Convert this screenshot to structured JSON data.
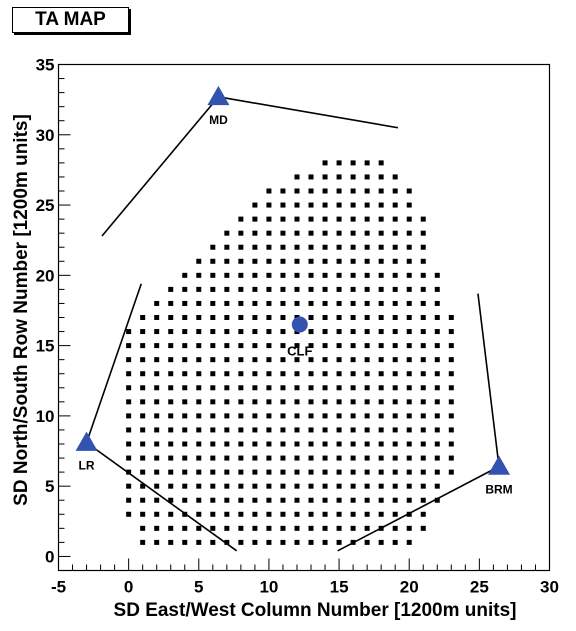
{
  "chart_data": {
    "type": "scatter",
    "title": "TA MAP",
    "xlabel": "SD East/West Column Number [1200m units]",
    "ylabel": "SD North/South Row Number [1200m units]",
    "xlim": [
      -5,
      30
    ],
    "ylim": [
      -1,
      35
    ],
    "xticks": [
      -5,
      0,
      5,
      10,
      15,
      20,
      25,
      30
    ],
    "yticks": [
      0,
      5,
      10,
      15,
      20,
      25,
      30,
      35
    ],
    "grid": false,
    "detector_rows": [
      {
        "y": 1,
        "x_min": 1,
        "x_max": 20
      },
      {
        "y": 2,
        "x_min": 1,
        "x_max": 21
      },
      {
        "y": 3,
        "x_min": 0,
        "x_max": 21
      },
      {
        "y": 4,
        "x_min": 0,
        "x_max": 22
      },
      {
        "y": 5,
        "x_min": 0,
        "x_max": 22
      },
      {
        "y": 6,
        "x_min": 0,
        "x_max": 23
      },
      {
        "y": 7,
        "x_min": 0,
        "x_max": 23
      },
      {
        "y": 8,
        "x_min": 0,
        "x_max": 23
      },
      {
        "y": 9,
        "x_min": 0,
        "x_max": 23
      },
      {
        "y": 10,
        "x_min": 0,
        "x_max": 23
      },
      {
        "y": 11,
        "x_min": 0,
        "x_max": 23
      },
      {
        "y": 12,
        "x_min": 0,
        "x_max": 23
      },
      {
        "y": 13,
        "x_min": 0,
        "x_max": 23
      },
      {
        "y": 14,
        "x_min": 0,
        "x_max": 23
      },
      {
        "y": 15,
        "x_min": 0,
        "x_max": 23
      },
      {
        "y": 16,
        "x_min": 0,
        "x_max": 23
      },
      {
        "y": 17,
        "x_min": 1,
        "x_max": 23
      },
      {
        "y": 18,
        "x_min": 2,
        "x_max": 22
      },
      {
        "y": 19,
        "x_min": 3,
        "x_max": 22
      },
      {
        "y": 20,
        "x_min": 4,
        "x_max": 22
      },
      {
        "y": 21,
        "x_min": 5,
        "x_max": 21
      },
      {
        "y": 22,
        "x_min": 6,
        "x_max": 21
      },
      {
        "y": 23,
        "x_min": 7,
        "x_max": 21
      },
      {
        "y": 24,
        "x_min": 8,
        "x_max": 21
      },
      {
        "y": 25,
        "x_min": 9,
        "x_max": 20
      },
      {
        "y": 26,
        "x_min": 10,
        "x_max": 20
      },
      {
        "y": 27,
        "x_min": 12,
        "x_max": 19
      },
      {
        "y": 28,
        "x_min": 14,
        "x_max": 18
      }
    ],
    "stations": [
      {
        "label": "MD",
        "x": 6.4,
        "y": 32.7,
        "marker": "triangle"
      },
      {
        "label": "LR",
        "x": -3.0,
        "y": 8.1,
        "marker": "triangle"
      },
      {
        "label": "BRM",
        "x": 26.4,
        "y": 6.4,
        "marker": "triangle"
      },
      {
        "label": "CLF",
        "x": 12.2,
        "y": 16.5,
        "marker": "circle"
      }
    ],
    "fov_lines": [
      {
        "station": "MD",
        "from": [
          6.4,
          32.7
        ],
        "to": [
          19.2,
          30.5
        ]
      },
      {
        "station": "MD",
        "from": [
          6.4,
          32.7
        ],
        "to": [
          -1.9,
          22.8
        ]
      },
      {
        "station": "LR",
        "from": [
          -3.0,
          8.1
        ],
        "to": [
          0.9,
          19.4
        ]
      },
      {
        "station": "LR",
        "from": [
          -3.0,
          8.1
        ],
        "to": [
          7.7,
          0.4
        ]
      },
      {
        "station": "BRM",
        "from": [
          26.4,
          6.4
        ],
        "to": [
          24.9,
          18.7
        ]
      },
      {
        "station": "BRM",
        "from": [
          26.4,
          6.4
        ],
        "to": [
          14.9,
          0.4
        ]
      }
    ],
    "colors": {
      "station_marker": "#3353b0",
      "detector": "#000000",
      "axes": "#000000",
      "background": "#ffffff"
    }
  }
}
